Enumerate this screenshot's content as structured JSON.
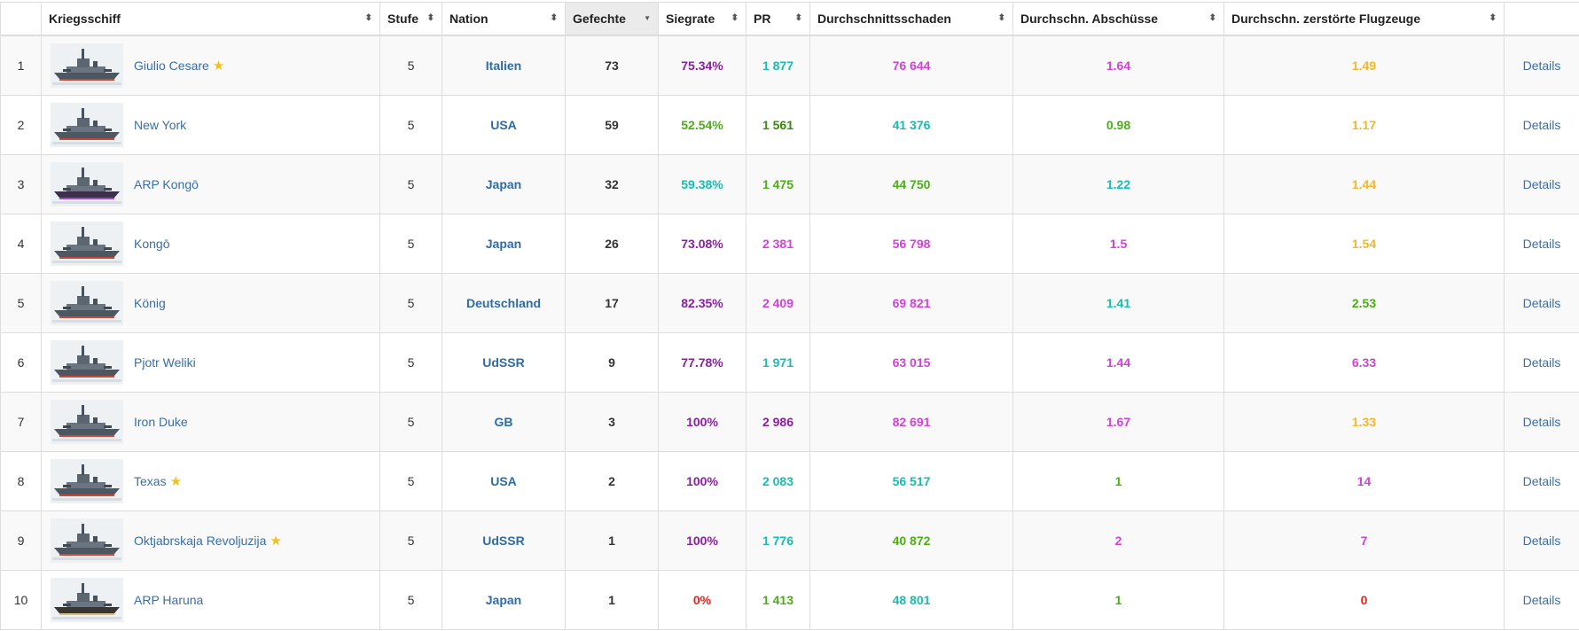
{
  "colors": {
    "purple": "#8b1fa3",
    "magenta": "#d042d8",
    "cyan": "#18bcb0",
    "green": "#4cae17",
    "darkgreen": "#3a8a0c",
    "yellow": "#f4b72b",
    "red": "#e2231a",
    "link": "#3a6ea5",
    "nation": "#2f6ca3"
  },
  "headers": [
    {
      "label": ""
    },
    {
      "label": "Kriegsschiff"
    },
    {
      "label": "Stufe"
    },
    {
      "label": "Nation"
    },
    {
      "label": "Gefechte",
      "sort": "desc"
    },
    {
      "label": "Siegrate"
    },
    {
      "label": "PR"
    },
    {
      "label": "Durchschnittsschaden"
    },
    {
      "label": "Durchschn. Abschüsse"
    },
    {
      "label": "Durchschn. zerstörte Flugzeuge"
    },
    {
      "label": ""
    }
  ],
  "rows": [
    {
      "rank": "1",
      "ship": "Giulio Cesare",
      "premium": true,
      "tier": "5",
      "nation": "Italien",
      "battles": "73",
      "winrate": "75.34%",
      "winrate_color": "purple",
      "pr": "1 877",
      "pr_color": "cyan",
      "dmg": "76 644",
      "dmg_color": "magenta",
      "kills": "1.64",
      "kills_color": "magenta",
      "planes": "1.49",
      "planes_color": "yellow",
      "details": "Details"
    },
    {
      "rank": "2",
      "ship": "New York",
      "premium": false,
      "tier": "5",
      "nation": "USA",
      "battles": "59",
      "winrate": "52.54%",
      "winrate_color": "green",
      "pr": "1 561",
      "pr_color": "darkgreen",
      "dmg": "41 376",
      "dmg_color": "cyan",
      "kills": "0.98",
      "kills_color": "green",
      "planes": "1.17",
      "planes_color": "yellow",
      "details": "Details"
    },
    {
      "rank": "3",
      "ship": "ARP Kongō",
      "premium": false,
      "tier": "5",
      "nation": "Japan",
      "battles": "32",
      "winrate": "59.38%",
      "winrate_color": "cyan",
      "pr": "1 475",
      "pr_color": "green",
      "dmg": "44 750",
      "dmg_color": "green",
      "kills": "1.22",
      "kills_color": "cyan",
      "planes": "1.44",
      "planes_color": "yellow",
      "details": "Details"
    },
    {
      "rank": "4",
      "ship": "Kongō",
      "premium": false,
      "tier": "5",
      "nation": "Japan",
      "battles": "26",
      "winrate": "73.08%",
      "winrate_color": "purple",
      "pr": "2 381",
      "pr_color": "magenta",
      "dmg": "56 798",
      "dmg_color": "magenta",
      "kills": "1.5",
      "kills_color": "magenta",
      "planes": "1.54",
      "planes_color": "yellow",
      "details": "Details"
    },
    {
      "rank": "5",
      "ship": "König",
      "premium": false,
      "tier": "5",
      "nation": "Deutschland",
      "battles": "17",
      "winrate": "82.35%",
      "winrate_color": "purple",
      "pr": "2 409",
      "pr_color": "magenta",
      "dmg": "69 821",
      "dmg_color": "magenta",
      "kills": "1.41",
      "kills_color": "cyan",
      "planes": "2.53",
      "planes_color": "green",
      "details": "Details"
    },
    {
      "rank": "6",
      "ship": "Pjotr Weliki",
      "premium": false,
      "tier": "5",
      "nation": "UdSSR",
      "battles": "9",
      "winrate": "77.78%",
      "winrate_color": "purple",
      "pr": "1 971",
      "pr_color": "cyan",
      "dmg": "63 015",
      "dmg_color": "magenta",
      "kills": "1.44",
      "kills_color": "magenta",
      "planes": "6.33",
      "planes_color": "magenta",
      "details": "Details"
    },
    {
      "rank": "7",
      "ship": "Iron Duke",
      "premium": false,
      "tier": "5",
      "nation": "GB",
      "battles": "3",
      "winrate": "100%",
      "winrate_color": "purple",
      "pr": "2 986",
      "pr_color": "purple",
      "dmg": "82 691",
      "dmg_color": "magenta",
      "kills": "1.67",
      "kills_color": "magenta",
      "planes": "1.33",
      "planes_color": "yellow",
      "details": "Details"
    },
    {
      "rank": "8",
      "ship": "Texas",
      "premium": true,
      "tier": "5",
      "nation": "USA",
      "battles": "2",
      "winrate": "100%",
      "winrate_color": "purple",
      "pr": "2 083",
      "pr_color": "cyan",
      "dmg": "56 517",
      "dmg_color": "cyan",
      "kills": "1",
      "kills_color": "green",
      "planes": "14",
      "planes_color": "magenta",
      "details": "Details"
    },
    {
      "rank": "9",
      "ship": "Oktjabrskaja Revoljuzija",
      "premium": true,
      "tier": "5",
      "nation": "UdSSR",
      "battles": "1",
      "winrate": "100%",
      "winrate_color": "purple",
      "pr": "1 776",
      "pr_color": "cyan",
      "dmg": "40 872",
      "dmg_color": "green",
      "kills": "2",
      "kills_color": "magenta",
      "planes": "7",
      "planes_color": "magenta",
      "details": "Details"
    },
    {
      "rank": "10",
      "ship": "ARP Haruna",
      "premium": false,
      "tier": "5",
      "nation": "Japan",
      "battles": "1",
      "winrate": "0%",
      "winrate_color": "red",
      "pr": "1 413",
      "pr_color": "green",
      "dmg": "48 801",
      "dmg_color": "cyan",
      "kills": "1",
      "kills_color": "green",
      "planes": "0",
      "planes_color": "red",
      "details": "Details"
    }
  ]
}
